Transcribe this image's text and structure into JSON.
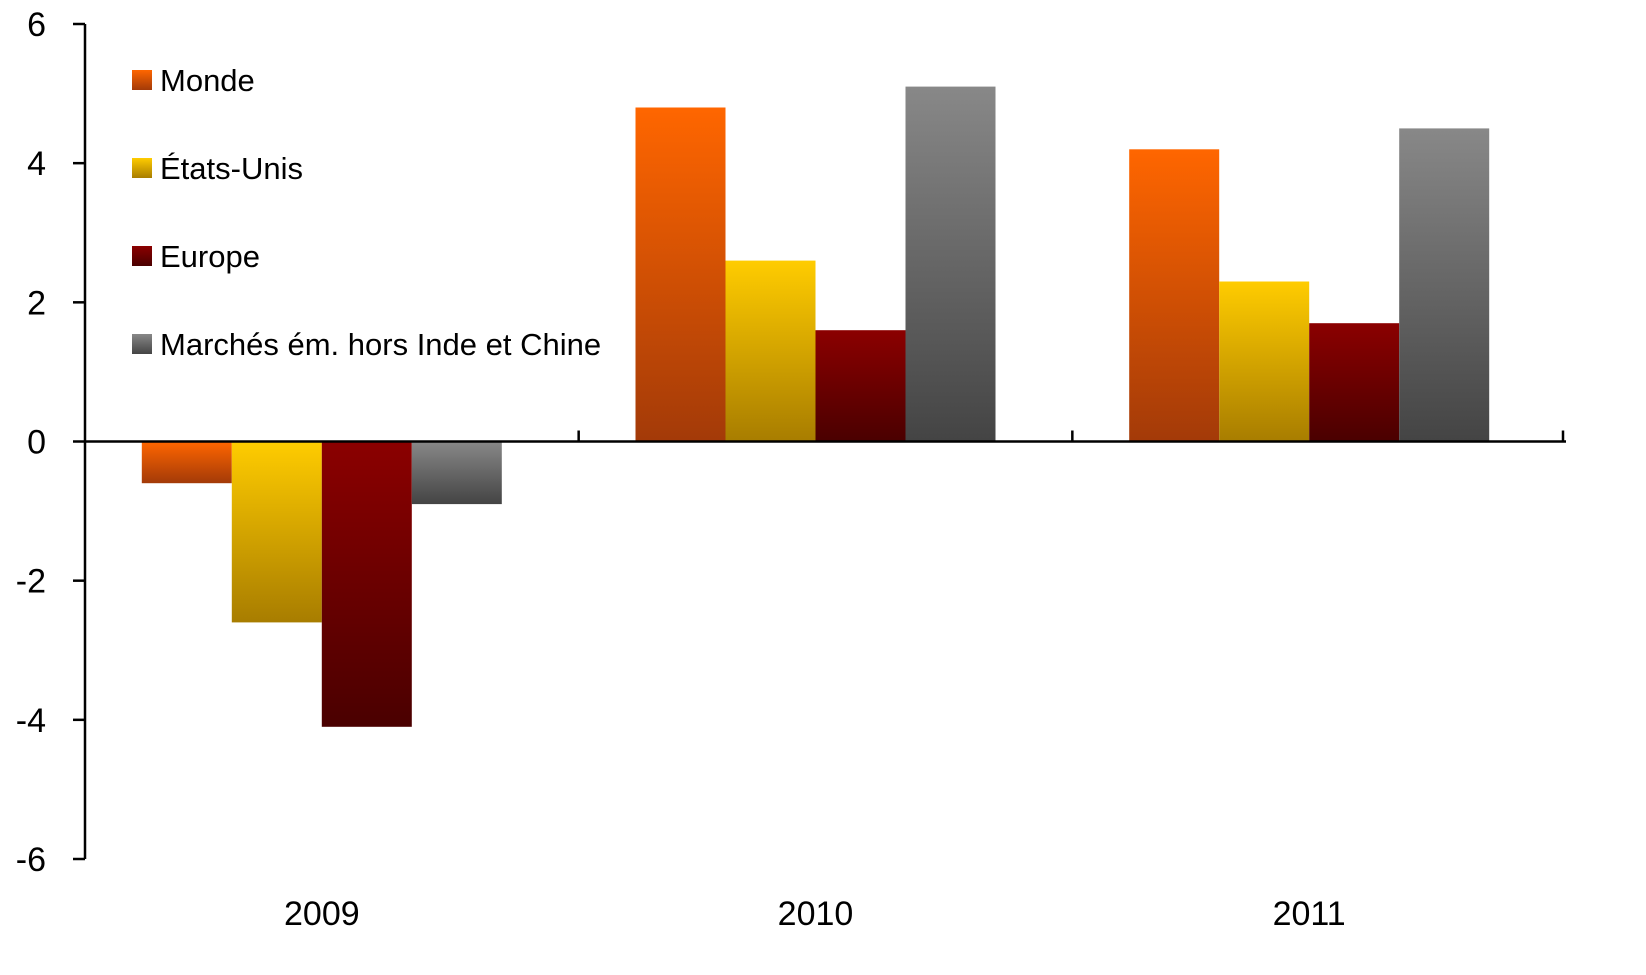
{
  "chart_data": {
    "type": "bar",
    "categories": [
      "2009",
      "2010",
      "2011"
    ],
    "series": [
      {
        "name": "Monde",
        "values": [
          -0.6,
          4.8,
          4.2
        ],
        "color": "#ff6600",
        "color_dark": "#a33a08"
      },
      {
        "name": "États-Unis",
        "values": [
          -2.6,
          2.6,
          2.3
        ],
        "color": "#ffcc00",
        "color_dark": "#a87d00"
      },
      {
        "name": "Europe",
        "values": [
          -4.1,
          1.6,
          1.7
        ],
        "color": "#8b0000",
        "color_dark": "#4a0000"
      },
      {
        "name": "Marchés ém. hors Inde et Chine",
        "values": [
          -0.9,
          5.1,
          4.5
        ],
        "color": "#888888",
        "color_dark": "#444444"
      }
    ],
    "ylim": [
      -6,
      6
    ],
    "yticks": [
      "-6",
      "-4",
      "-2",
      "0",
      "2",
      "4",
      "6"
    ],
    "title": "",
    "xlabel": "",
    "ylabel": "",
    "legend_position": "top-left",
    "grid": false
  }
}
